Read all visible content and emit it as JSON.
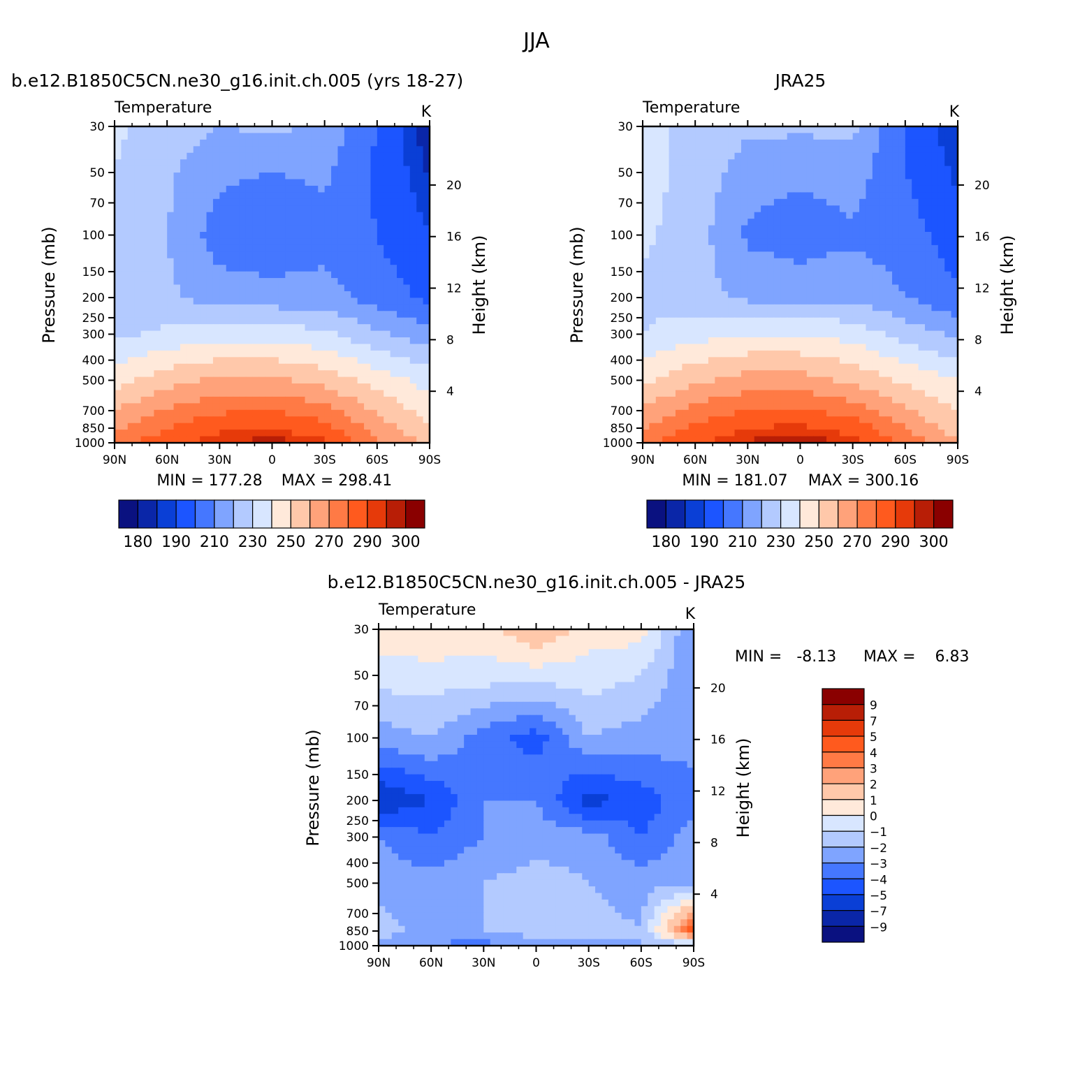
{
  "figure": {
    "title": "JJA",
    "units": "K"
  },
  "colors": {
    "abs_palette": [
      "#0a1180",
      "#0a26a8",
      "#0a3fd6",
      "#1c55ff",
      "#4577ff",
      "#7fa4ff",
      "#b3caff",
      "#d8e6ff",
      "#ffe9da",
      "#ffc8aa",
      "#ffa27a",
      "#ff7a45",
      "#ff5a1e",
      "#e63a0a",
      "#b81e06",
      "#8a0000"
    ],
    "diff_palette": [
      "#0a1180",
      "#0a26a8",
      "#0a3fd6",
      "#1c55ff",
      "#4577ff",
      "#7fa4ff",
      "#b3caff",
      "#d8e6ff",
      "#ffe9da",
      "#ffc8aa",
      "#ffa27a",
      "#ff7a45",
      "#ff5a1e",
      "#e63a0a",
      "#b81e06",
      "#8a0000"
    ]
  },
  "chart_data": [
    {
      "type": "heatmap",
      "title": "b.e12.B1850C5CN.ne30_g16.init.ch.005 (yrs 18-27)",
      "variable": "Temperature",
      "units": "K",
      "xlabel": "",
      "ylabel": "Pressure (mb)",
      "ylabel_right": "Height (km)",
      "x_ticks": [
        "90N",
        "60N",
        "30N",
        "0",
        "30S",
        "60S",
        "90S"
      ],
      "y_ticks": [
        "30",
        "50",
        "70",
        "100",
        "150",
        "200",
        "250",
        "300",
        "400",
        "500",
        "700",
        "850",
        "1000"
      ],
      "y_ticks_right": [
        "20",
        "16",
        "12",
        "8",
        "4"
      ],
      "y_scale": "log",
      "ylim": [
        1000,
        30
      ],
      "min_text": "MIN = 177.28",
      "max_text": "MAX = 298.41",
      "colorbar": {
        "orientation": "horizontal",
        "levels": [
          180,
          185,
          190,
          200,
          210,
          220,
          230,
          240,
          250,
          260,
          270,
          280,
          290,
          295,
          300
        ],
        "labels": [
          "180",
          "190",
          "210",
          "230",
          "250",
          "270",
          "290",
          "300"
        ]
      },
      "x": [
        90,
        60,
        30,
        0,
        -30,
        -60,
        -90
      ],
      "pressure": [
        30,
        50,
        100,
        200,
        300,
        500,
        850,
        1000
      ],
      "values": [
        [
          232,
          225,
          220,
          222,
          218,
          200,
          180
        ],
        [
          230,
          222,
          212,
          210,
          212,
          198,
          184
        ],
        [
          228,
          220,
          205,
          202,
          205,
          200,
          190
        ],
        [
          226,
          222,
          215,
          214,
          215,
          205,
          198
        ],
        [
          228,
          232,
          236,
          236,
          232,
          222,
          214
        ],
        [
          246,
          256,
          262,
          262,
          256,
          246,
          236
        ],
        [
          268,
          280,
          288,
          290,
          284,
          266,
          250
        ],
        [
          276,
          286,
          294,
          298,
          292,
          272,
          258
        ]
      ]
    },
    {
      "type": "heatmap",
      "title": "JRA25",
      "variable": "Temperature",
      "units": "K",
      "xlabel": "",
      "ylabel": "Pressure (mb)",
      "ylabel_right": "Height (km)",
      "x_ticks": [
        "90N",
        "60N",
        "30N",
        "0",
        "30S",
        "60S",
        "90S"
      ],
      "y_ticks": [
        "30",
        "50",
        "70",
        "100",
        "150",
        "200",
        "250",
        "300",
        "400",
        "500",
        "700",
        "850",
        "1000"
      ],
      "y_ticks_right": [
        "20",
        "16",
        "12",
        "8",
        "4"
      ],
      "y_scale": "log",
      "ylim": [
        1000,
        30
      ],
      "min_text": "MIN = 181.07",
      "max_text": "MAX = 300.16",
      "colorbar": {
        "orientation": "horizontal",
        "levels": [
          180,
          185,
          190,
          200,
          210,
          220,
          230,
          240,
          250,
          260,
          270,
          280,
          290,
          295,
          300
        ],
        "labels": [
          "180",
          "190",
          "210",
          "230",
          "250",
          "270",
          "290",
          "300"
        ]
      },
      "x": [
        90,
        60,
        30,
        0,
        -30,
        -60,
        -90
      ],
      "pressure": [
        30,
        50,
        100,
        200,
        300,
        500,
        850,
        1000
      ],
      "values": [
        [
          232,
          228,
          222,
          222,
          222,
          200,
          184
        ],
        [
          234,
          226,
          215,
          212,
          215,
          200,
          188
        ],
        [
          232,
          225,
          208,
          205,
          208,
          205,
          194
        ],
        [
          228,
          224,
          218,
          216,
          218,
          210,
          202
        ],
        [
          230,
          236,
          240,
          240,
          236,
          226,
          218
        ],
        [
          248,
          258,
          264,
          264,
          258,
          248,
          240
        ],
        [
          270,
          282,
          290,
          292,
          286,
          270,
          254
        ],
        [
          278,
          288,
          296,
          300,
          294,
          276,
          262
        ]
      ]
    },
    {
      "type": "heatmap",
      "title": "b.e12.B1850C5CN.ne30_g16.init.ch.005 - JRA25",
      "variable": "Temperature",
      "units": "K",
      "xlabel": "",
      "ylabel": "Pressure (mb)",
      "ylabel_right": "Height (km)",
      "x_ticks": [
        "90N",
        "60N",
        "30N",
        "0",
        "30S",
        "60S",
        "90S"
      ],
      "y_ticks": [
        "30",
        "50",
        "70",
        "100",
        "150",
        "200",
        "250",
        "300",
        "400",
        "500",
        "700",
        "850",
        "1000"
      ],
      "y_ticks_right": [
        "20",
        "16",
        "12",
        "8",
        "4"
      ],
      "y_scale": "log",
      "ylim": [
        1000,
        30
      ],
      "min_text": "MIN =   -8.13",
      "max_text": "MAX =    6.83",
      "colorbar": {
        "orientation": "vertical",
        "levels": [
          -9,
          -7,
          -5,
          -4,
          -3,
          -2,
          -1,
          0,
          1,
          2,
          3,
          4,
          5,
          7,
          9
        ],
        "labels": [
          "9",
          "7",
          "5",
          "4",
          "3",
          "2",
          "1",
          "0",
          "-1",
          "-2",
          "-3",
          "-4",
          "-5",
          "-7",
          "-9"
        ]
      },
      "x": [
        90,
        60,
        30,
        0,
        -30,
        -60,
        -90
      ],
      "pressure": [
        30,
        50,
        100,
        200,
        300,
        500,
        850,
        1000
      ],
      "values": [
        [
          0.5,
          1.0,
          0.5,
          2.0,
          0.5,
          0.5,
          -3.0
        ],
        [
          -0.5,
          -0.5,
          -0.5,
          -0.5,
          -0.5,
          -1.0,
          -3.0
        ],
        [
          -2.5,
          -2.0,
          -3.5,
          -4.5,
          -2.0,
          -2.5,
          -2.5
        ],
        [
          -6.0,
          -5.0,
          -3.0,
          -3.0,
          -5.5,
          -4.5,
          -3.5
        ],
        [
          -3.0,
          -4.0,
          -3.0,
          -2.5,
          -2.5,
          -4.0,
          -2.5
        ],
        [
          -2.5,
          -2.5,
          -2.0,
          -1.5,
          -2.0,
          -2.5,
          -2.0
        ],
        [
          -1.5,
          -2.5,
          -2.0,
          -1.5,
          -1.5,
          -2.0,
          5.0
        ],
        [
          -2.5,
          -3.0,
          -3.5,
          -2.5,
          -2.5,
          -2.0,
          -2.0
        ]
      ]
    }
  ]
}
